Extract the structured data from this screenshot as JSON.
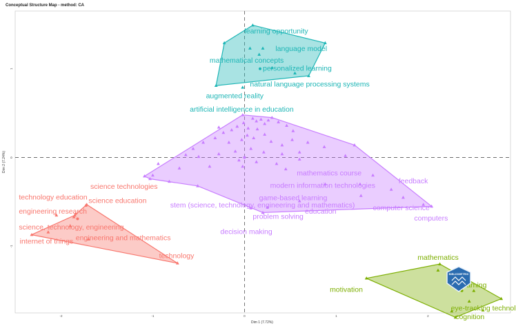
{
  "chart_data": {
    "type": "scatter",
    "title": "Conceptual Structure Map - method: CA",
    "xlabel": "Dim 1 (7.72%)",
    "ylabel": "Dim 2 (7.24%)",
    "xlim": [
      -2.5,
      2.9
    ],
    "ylim": [
      -1.75,
      1.65
    ],
    "x_ticks": [
      -2,
      -1,
      0,
      1,
      2
    ],
    "x_tick_labels": [
      "-2",
      "-1",
      "0",
      "1",
      "2"
    ],
    "y_ticks": [
      -1,
      0,
      1
    ],
    "y_tick_labels": [
      "-1",
      "0",
      "1"
    ],
    "reference_lines": {
      "x": 0,
      "y": 0,
      "style": "dashed"
    },
    "grid": false,
    "clusters": [
      {
        "color": "#1CB5B5",
        "hull": [
          [
            0.09,
            1.49
          ],
          [
            0.88,
            1.29
          ],
          [
            0.7,
            0.92
          ],
          [
            -0.31,
            0.81
          ],
          [
            -0.22,
            1.29
          ]
        ],
        "points": [
          {
            "x": 0.06,
            "y": 1.23
          },
          {
            "x": 0.2,
            "y": 1.23
          },
          {
            "x": 0.16,
            "y": 1.16
          },
          {
            "x": 0.3,
            "y": 1.01
          },
          {
            "x": 0.55,
            "y": 0.95
          },
          {
            "x": -0.02,
            "y": 0.79
          }
        ],
        "labels": [
          {
            "text": "learning opportunity",
            "x": 0.0,
            "y": 1.42,
            "anchor": "start"
          },
          {
            "text": "language model",
            "x": 0.9,
            "y": 1.22,
            "anchor": "end"
          },
          {
            "text": "mathematical concepts",
            "x": -0.38,
            "y": 1.09,
            "anchor": "start"
          },
          {
            "text": "personalized learning",
            "x": 0.2,
            "y": 1.0,
            "anchor": "start"
          },
          {
            "text": "natural language processing systems",
            "x": 0.06,
            "y": 0.82,
            "anchor": "start"
          },
          {
            "text": "augmented reality",
            "x": -0.42,
            "y": 0.69,
            "anchor": "start"
          },
          {
            "text": "artificial intelligence in education",
            "x": -0.03,
            "y": 0.54,
            "anchor": "middle"
          }
        ],
        "centroid": {
          "x": 0.17,
          "y": 1.0
        }
      },
      {
        "color": "#C77CFF",
        "hull": [
          [
            -0.02,
            0.48
          ],
          [
            0.3,
            0.45
          ],
          [
            1.2,
            0.14
          ],
          [
            2.04,
            -0.55
          ],
          [
            0.2,
            -0.62
          ],
          [
            -0.51,
            -0.32
          ],
          [
            -1.03,
            -0.24
          ],
          [
            -1.09,
            -0.21
          ]
        ],
        "points": [
          {
            "x": -0.01,
            "y": 0.39
          },
          {
            "x": 0.09,
            "y": 0.44
          },
          {
            "x": 0.13,
            "y": 0.41
          },
          {
            "x": 0.18,
            "y": 0.43
          },
          {
            "x": 0.22,
            "y": 0.38
          },
          {
            "x": 0.26,
            "y": 0.42
          },
          {
            "x": 0.14,
            "y": 0.32
          },
          {
            "x": 0.04,
            "y": 0.33
          },
          {
            "x": -0.08,
            "y": 0.35
          },
          {
            "x": -0.14,
            "y": 0.31
          },
          {
            "x": -0.23,
            "y": 0.28
          },
          {
            "x": -0.28,
            "y": 0.34
          },
          {
            "x": 0.37,
            "y": 0.4
          },
          {
            "x": 0.46,
            "y": 0.36
          },
          {
            "x": 0.53,
            "y": 0.3
          },
          {
            "x": 0.22,
            "y": 0.26
          },
          {
            "x": 0.1,
            "y": 0.22
          },
          {
            "x": -0.03,
            "y": 0.2
          },
          {
            "x": -0.17,
            "y": 0.17
          },
          {
            "x": -0.32,
            "y": 0.22
          },
          {
            "x": -0.45,
            "y": 0.17
          },
          {
            "x": -0.56,
            "y": 0.1
          },
          {
            "x": -0.64,
            "y": 0.03
          },
          {
            "x": -0.5,
            "y": 0.01
          },
          {
            "x": 0.29,
            "y": 0.18
          },
          {
            "x": 0.41,
            "y": 0.14
          },
          {
            "x": 0.52,
            "y": 0.2
          },
          {
            "x": 0.69,
            "y": 0.17
          },
          {
            "x": 0.87,
            "y": 0.12
          },
          {
            "x": 0.6,
            "y": 0.06
          },
          {
            "x": 0.41,
            "y": 0.04
          },
          {
            "x": 0.21,
            "y": 0.06
          },
          {
            "x": 0.07,
            "y": 0.1
          },
          {
            "x": -0.1,
            "y": 0.07
          },
          {
            "x": -0.28,
            "y": 0.04
          },
          {
            "x": -0.06,
            "y": -0.03
          },
          {
            "x": 0.13,
            "y": -0.05
          },
          {
            "x": 0.35,
            "y": -0.07
          },
          {
            "x": 0.6,
            "y": -0.02
          },
          {
            "x": -0.38,
            "y": -0.1
          },
          {
            "x": -0.71,
            "y": -0.12
          },
          {
            "x": -0.94,
            "y": -0.07
          },
          {
            "x": -0.82,
            "y": -0.27
          },
          {
            "x": -1.0,
            "y": -0.2
          },
          {
            "x": 0.03,
            "y": 0.25
          },
          {
            "x": -0.02,
            "y": -0.1
          },
          {
            "x": 0.45,
            "y": -0.13
          },
          {
            "x": 1.1,
            "y": 0.02
          },
          {
            "x": 1.4,
            "y": -0.2
          },
          {
            "x": 1.6,
            "y": -0.36
          },
          {
            "x": 1.73,
            "y": -0.45
          },
          {
            "x": 1.95,
            "y": -0.53
          },
          {
            "x": 1.27,
            "y": -0.43
          },
          {
            "x": 0.6,
            "y": -0.49
          },
          {
            "x": 0.25,
            "y": -0.56
          },
          {
            "x": 0.07,
            "y": -0.57
          },
          {
            "x": 0.88,
            "y": -0.3
          },
          {
            "x": 1.26,
            "y": -0.3
          }
        ],
        "labels": [
          {
            "text": "mathematics course",
            "x": 0.57,
            "y": -0.18,
            "anchor": "start"
          },
          {
            "text": "feedback",
            "x": 1.84,
            "y": -0.27,
            "anchor": "middle"
          },
          {
            "text": "modern information technologies",
            "x": 0.28,
            "y": -0.32,
            "anchor": "start"
          },
          {
            "text": "game-based learning",
            "x": 0.16,
            "y": -0.46,
            "anchor": "start"
          },
          {
            "text": "stem (science, technology, engineering and mathematics)",
            "x": -0.81,
            "y": -0.54,
            "anchor": "start"
          },
          {
            "text": "computer science",
            "x": 1.4,
            "y": -0.57,
            "anchor": "start"
          },
          {
            "text": "education",
            "x": 0.83,
            "y": -0.61,
            "anchor": "middle"
          },
          {
            "text": "problem solving",
            "x": 0.09,
            "y": -0.67,
            "anchor": "start"
          },
          {
            "text": "computers",
            "x": 1.85,
            "y": -0.69,
            "anchor": "start"
          },
          {
            "text": "decision making",
            "x": 0.02,
            "y": -0.84,
            "anchor": "middle"
          }
        ],
        "centroid": {
          "x": 0.0,
          "y": 0.0
        }
      },
      {
        "color": "#F8766D",
        "hull": [
          [
            -2.32,
            -0.87
          ],
          [
            -1.85,
            -0.65
          ],
          [
            -1.72,
            -0.53
          ],
          [
            -0.73,
            -1.19
          ]
        ],
        "points": [
          {
            "x": -1.84,
            "y": -0.63
          },
          {
            "x": -1.73,
            "y": -0.54
          },
          {
            "x": -2.05,
            "y": -0.65
          },
          {
            "x": -1.86,
            "y": -0.67
          },
          {
            "x": -2.14,
            "y": -0.84
          },
          {
            "x": -1.9,
            "y": -0.77
          },
          {
            "x": -1.7,
            "y": -0.92
          }
        ],
        "labels": [
          {
            "text": "science technologies",
            "x": -1.68,
            "y": -0.33,
            "anchor": "start"
          },
          {
            "text": "technology education",
            "x": -2.46,
            "y": -0.45,
            "anchor": "start"
          },
          {
            "text": "science education",
            "x": -1.7,
            "y": -0.49,
            "anchor": "start"
          },
          {
            "text": "engineering research",
            "x": -2.46,
            "y": -0.61,
            "anchor": "start"
          },
          {
            "text": "science, technology, engineering",
            "x": -2.46,
            "y": -0.79,
            "anchor": "start"
          },
          {
            "text": "internet of things",
            "x": -2.45,
            "y": -0.95,
            "anchor": "start"
          },
          {
            "text": "engineering and mathematics",
            "x": -1.84,
            "y": -0.91,
            "anchor": "start"
          },
          {
            "text": "technology",
            "x": -0.74,
            "y": -1.11,
            "anchor": "middle"
          }
        ],
        "centroid": {
          "x": -1.82,
          "y": -0.69
        }
      },
      {
        "color": "#7CAE00",
        "hull": [
          [
            1.33,
            -1.36
          ],
          [
            2.13,
            -1.2
          ],
          [
            2.8,
            -1.59
          ],
          [
            2.3,
            -1.8
          ]
        ],
        "points": [
          {
            "x": 2.11,
            "y": -1.27
          },
          {
            "x": 2.5,
            "y": -1.5
          },
          {
            "x": 2.45,
            "y": -1.62
          },
          {
            "x": 2.6,
            "y": -1.72
          },
          {
            "x": 2.26,
            "y": -1.73
          }
        ],
        "labels": [
          {
            "text": "mathematics",
            "x": 2.11,
            "y": -1.13,
            "anchor": "middle"
          },
          {
            "text": "learning",
            "x": 2.5,
            "y": -1.44,
            "anchor": "middle"
          },
          {
            "text": "motivation",
            "x": 1.29,
            "y": -1.49,
            "anchor": "end"
          },
          {
            "text": "eye-tracking technology",
            "x": 2.25,
            "y": -1.7,
            "anchor": "start"
          },
          {
            "text": "cognition",
            "x": 2.3,
            "y": -1.8,
            "anchor": "start"
          }
        ],
        "centroid": {
          "x": 2.37,
          "y": -1.5
        }
      }
    ]
  },
  "badge": {
    "text": "BIBLIOMETRIX"
  }
}
